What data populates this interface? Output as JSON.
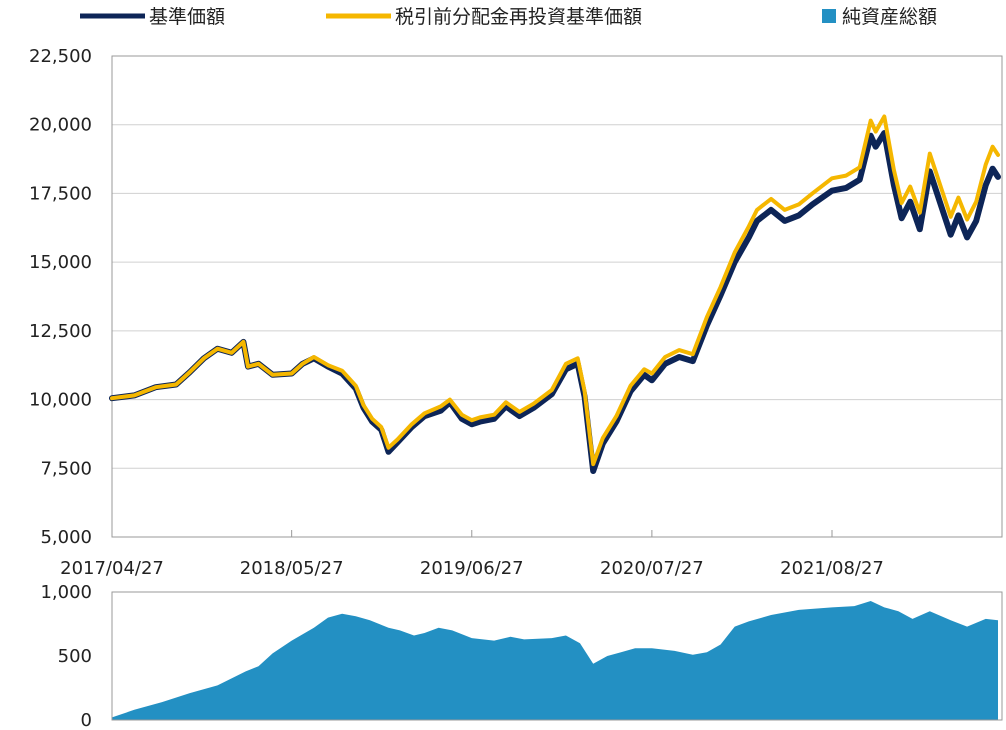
{
  "legend": [
    {
      "label": "基準価額",
      "color": "#0d2557",
      "marker": "line"
    },
    {
      "label": "税引前分配金再投資基準価額",
      "color": "#f5b700",
      "marker": "line"
    },
    {
      "label": "純資産総額",
      "color": "#2390c3",
      "marker": "square"
    }
  ],
  "chart_data": [
    {
      "type": "line",
      "ylim": [
        5000,
        22500
      ],
      "yticks": [
        "5,000",
        "7,500",
        "10,000",
        "12,500",
        "15,000",
        "17,500",
        "20,000",
        "22,500"
      ],
      "xticks": [
        "2017/04/27",
        "2018/05/27",
        "2019/06/27",
        "2020/07/27",
        "2021/08/27"
      ],
      "grid": true,
      "series": [
        {
          "name": "基準価額",
          "color": "#0d2557",
          "points": [
            [
              "2017/04/27",
              10050
            ],
            [
              "2017/06/15",
              10150
            ],
            [
              "2017/08/01",
              10450
            ],
            [
              "2017/09/15",
              10550
            ],
            [
              "2017/10/15",
              11000
            ],
            [
              "2017/11/15",
              11500
            ],
            [
              "2017/12/15",
              11850
            ],
            [
              "2018/01/15",
              11700
            ],
            [
              "2018/02/10",
              12100
            ],
            [
              "2018/02/20",
              11200
            ],
            [
              "2018/03/15",
              11300
            ],
            [
              "2018/04/15",
              10900
            ],
            [
              "2018/05/27",
              10950
            ],
            [
              "2018/06/20",
              11300
            ],
            [
              "2018/07/15",
              11500
            ],
            [
              "2018/08/15",
              11200
            ],
            [
              "2018/09/15",
              10950
            ],
            [
              "2018/10/15",
              10400
            ],
            [
              "2018/11/01",
              9700
            ],
            [
              "2018/11/20",
              9200
            ],
            [
              "2018/12/10",
              8900
            ],
            [
              "2018/12/26",
              8100
            ],
            [
              "2019/01/15",
              8450
            ],
            [
              "2019/02/15",
              9000
            ],
            [
              "2019/03/15",
              9400
            ],
            [
              "2019/04/20",
              9600
            ],
            [
              "2019/05/10",
              9900
            ],
            [
              "2019/06/05",
              9300
            ],
            [
              "2019/06/27",
              9100
            ],
            [
              "2019/07/15",
              9200
            ],
            [
              "2019/08/15",
              9300
            ],
            [
              "2019/09/10",
              9750
            ],
            [
              "2019/10/10",
              9400
            ],
            [
              "2019/11/10",
              9700
            ],
            [
              "2019/12/20",
              10200
            ],
            [
              "2020/01/20",
              11100
            ],
            [
              "2020/02/15",
              11300
            ],
            [
              "2020/03/01",
              10100
            ],
            [
              "2020/03/20",
              7400
            ],
            [
              "2020/04/10",
              8400
            ],
            [
              "2020/05/10",
              9200
            ],
            [
              "2020/06/10",
              10300
            ],
            [
              "2020/07/10",
              10900
            ],
            [
              "2020/07/27",
              10700
            ],
            [
              "2020/08/25",
              11300
            ],
            [
              "2020/09/25",
              11550
            ],
            [
              "2020/10/25",
              11400
            ],
            [
              "2020/11/25",
              12700
            ],
            [
              "2020/12/25",
              13800
            ],
            [
              "2021/01/25",
              15000
            ],
            [
              "2021/02/25",
              15900
            ],
            [
              "2021/03/15",
              16500
            ],
            [
              "2021/04/15",
              16900
            ],
            [
              "2021/05/15",
              16500
            ],
            [
              "2021/06/15",
              16700
            ],
            [
              "2021/07/15",
              17100
            ],
            [
              "2021/08/27",
              17600
            ],
            [
              "2021/09/27",
              17700
            ],
            [
              "2021/10/27",
              18000
            ],
            [
              "2021/11/20",
              19600
            ],
            [
              "2021/12/01",
              19200
            ],
            [
              "2021/12/20",
              19700
            ],
            [
              "2022/01/10",
              17800
            ],
            [
              "2022/01/27",
              16600
            ],
            [
              "2022/02/15",
              17200
            ],
            [
              "2022/03/08",
              16200
            ],
            [
              "2022/03/30",
              18300
            ],
            [
              "2022/04/27",
              16900
            ],
            [
              "2022/05/15",
              16000
            ],
            [
              "2022/06/01",
              16700
            ],
            [
              "2022/06/20",
              15900
            ],
            [
              "2022/07/10",
              16500
            ],
            [
              "2022/07/31",
              17800
            ],
            [
              "2022/08/15",
              18400
            ],
            [
              "2022/08/27",
              18100
            ]
          ]
        },
        {
          "name": "税引前分配金再投資基準価額",
          "color": "#f5b700",
          "points": [
            [
              "2017/04/27",
              10050
            ],
            [
              "2017/06/15",
              10150
            ],
            [
              "2017/08/01",
              10450
            ],
            [
              "2017/09/15",
              10550
            ],
            [
              "2017/10/15",
              11000
            ],
            [
              "2017/11/15",
              11500
            ],
            [
              "2017/12/15",
              11850
            ],
            [
              "2018/01/15",
              11700
            ],
            [
              "2018/02/10",
              12100
            ],
            [
              "2018/02/20",
              11200
            ],
            [
              "2018/03/15",
              11300
            ],
            [
              "2018/04/15",
              10900
            ],
            [
              "2018/05/27",
              10950
            ],
            [
              "2018/06/20",
              11300
            ],
            [
              "2018/07/15",
              11550
            ],
            [
              "2018/08/15",
              11250
            ],
            [
              "2018/09/15",
              11050
            ],
            [
              "2018/10/15",
              10500
            ],
            [
              "2018/11/01",
              9800
            ],
            [
              "2018/11/20",
              9300
            ],
            [
              "2018/12/10",
              9000
            ],
            [
              "2018/12/26",
              8250
            ],
            [
              "2019/01/15",
              8550
            ],
            [
              "2019/02/15",
              9100
            ],
            [
              "2019/03/15",
              9500
            ],
            [
              "2019/04/20",
              9750
            ],
            [
              "2019/05/10",
              10000
            ],
            [
              "2019/06/05",
              9450
            ],
            [
              "2019/06/27",
              9250
            ],
            [
              "2019/07/15",
              9350
            ],
            [
              "2019/08/15",
              9450
            ],
            [
              "2019/09/10",
              9900
            ],
            [
              "2019/10/10",
              9550
            ],
            [
              "2019/11/10",
              9850
            ],
            [
              "2019/12/20",
              10350
            ],
            [
              "2020/01/20",
              11300
            ],
            [
              "2020/02/15",
              11500
            ],
            [
              "2020/03/01",
              10300
            ],
            [
              "2020/03/20",
              7650
            ],
            [
              "2020/04/10",
              8600
            ],
            [
              "2020/05/10",
              9400
            ],
            [
              "2020/06/10",
              10500
            ],
            [
              "2020/07/10",
              11100
            ],
            [
              "2020/07/27",
              10950
            ],
            [
              "2020/08/25",
              11550
            ],
            [
              "2020/09/25",
              11800
            ],
            [
              "2020/10/25",
              11650
            ],
            [
              "2020/11/25",
              13000
            ],
            [
              "2020/12/25",
              14100
            ],
            [
              "2021/01/25",
              15350
            ],
            [
              "2021/02/25",
              16300
            ],
            [
              "2021/03/15",
              16900
            ],
            [
              "2021/04/15",
              17300
            ],
            [
              "2021/05/15",
              16900
            ],
            [
              "2021/06/15",
              17100
            ],
            [
              "2021/07/15",
              17500
            ],
            [
              "2021/08/27",
              18050
            ],
            [
              "2021/09/27",
              18150
            ],
            [
              "2021/10/27",
              18450
            ],
            [
              "2021/11/20",
              20150
            ],
            [
              "2021/12/01",
              19750
            ],
            [
              "2021/12/20",
              20300
            ],
            [
              "2022/01/10",
              18350
            ],
            [
              "2022/01/27",
              17150
            ],
            [
              "2022/02/15",
              17750
            ],
            [
              "2022/03/08",
              16800
            ],
            [
              "2022/03/30",
              18950
            ],
            [
              "2022/04/27",
              17550
            ],
            [
              "2022/05/15",
              16650
            ],
            [
              "2022/06/01",
              17350
            ],
            [
              "2022/06/20",
              16550
            ],
            [
              "2022/07/10",
              17200
            ],
            [
              "2022/07/31",
              18550
            ],
            [
              "2022/08/15",
              19200
            ],
            [
              "2022/08/27",
              18900
            ]
          ]
        }
      ]
    },
    {
      "type": "area",
      "ylim": [
        0,
        1000
      ],
      "yticks": [
        "0",
        "500",
        "1,000"
      ],
      "grid": false,
      "series": [
        {
          "name": "純資産総額",
          "color": "#2390c3",
          "points": [
            [
              "2017/04/27",
              20
            ],
            [
              "2017/06/15",
              80
            ],
            [
              "2017/08/15",
              140
            ],
            [
              "2017/10/15",
              210
            ],
            [
              "2017/12/15",
              270
            ],
            [
              "2018/02/15",
              380
            ],
            [
              "2018/03/15",
              420
            ],
            [
              "2018/04/15",
              520
            ],
            [
              "2018/05/27",
              620
            ],
            [
              "2018/07/15",
              720
            ],
            [
              "2018/08/15",
              800
            ],
            [
              "2018/09/15",
              830
            ],
            [
              "2018/10/15",
              810
            ],
            [
              "2018/11/15",
              780
            ],
            [
              "2018/12/26",
              720
            ],
            [
              "2019/01/20",
              700
            ],
            [
              "2019/02/20",
              660
            ],
            [
              "2019/03/15",
              680
            ],
            [
              "2019/04/15",
              720
            ],
            [
              "2019/05/15",
              700
            ],
            [
              "2019/06/27",
              640
            ],
            [
              "2019/08/15",
              620
            ],
            [
              "2019/09/20",
              650
            ],
            [
              "2019/10/20",
              630
            ],
            [
              "2019/12/20",
              640
            ],
            [
              "2020/01/20",
              660
            ],
            [
              "2020/02/20",
              600
            ],
            [
              "2020/03/20",
              440
            ],
            [
              "2020/04/20",
              500
            ],
            [
              "2020/05/20",
              530
            ],
            [
              "2020/06/20",
              560
            ],
            [
              "2020/07/27",
              560
            ],
            [
              "2020/09/15",
              540
            ],
            [
              "2020/10/25",
              510
            ],
            [
              "2020/11/25",
              530
            ],
            [
              "2020/12/25",
              590
            ],
            [
              "2021/01/25",
              730
            ],
            [
              "2021/02/25",
              770
            ],
            [
              "2021/04/15",
              820
            ],
            [
              "2021/06/15",
              860
            ],
            [
              "2021/08/27",
              880
            ],
            [
              "2021/10/15",
              890
            ],
            [
              "2021/11/20",
              930
            ],
            [
              "2021/12/20",
              880
            ],
            [
              "2022/01/20",
              850
            ],
            [
              "2022/02/20",
              790
            ],
            [
              "2022/03/30",
              850
            ],
            [
              "2022/05/15",
              780
            ],
            [
              "2022/06/20",
              730
            ],
            [
              "2022/07/31",
              790
            ],
            [
              "2022/08/27",
              780
            ]
          ]
        }
      ]
    }
  ]
}
